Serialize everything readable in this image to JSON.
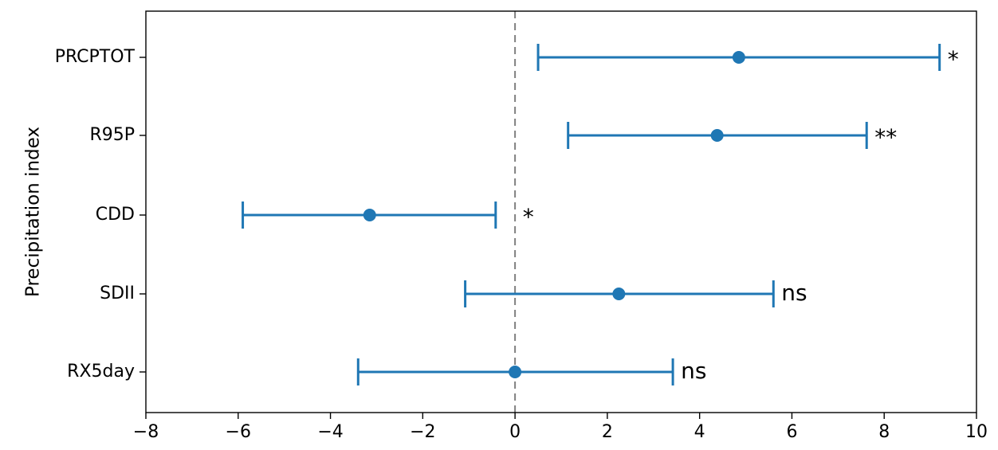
{
  "chart_data": {
    "type": "errorbar",
    "ylabel": "Precipitation index",
    "xlabel": "",
    "xlim": [
      -8,
      10
    ],
    "xticks": [
      -8,
      -6,
      -4,
      -2,
      0,
      2,
      4,
      6,
      8,
      10
    ],
    "xtick_labels": [
      "−8",
      "−6",
      "−4",
      "−2",
      "0",
      "2",
      "4",
      "6",
      "8",
      "10"
    ],
    "reference_line": 0,
    "color": "#1f77b4",
    "grid": false,
    "categories": [
      "PRCPTOT",
      "R95P",
      "CDD",
      "SDII",
      "RX5day"
    ],
    "estimates": [
      4.85,
      4.38,
      -3.15,
      2.25,
      0.0
    ],
    "ci_low": [
      0.5,
      1.15,
      -5.9,
      -1.08,
      -3.4
    ],
    "ci_high": [
      9.2,
      7.62,
      -0.42,
      5.6,
      3.42
    ],
    "significance": [
      "*",
      "**",
      "*",
      "ns",
      "ns"
    ]
  }
}
